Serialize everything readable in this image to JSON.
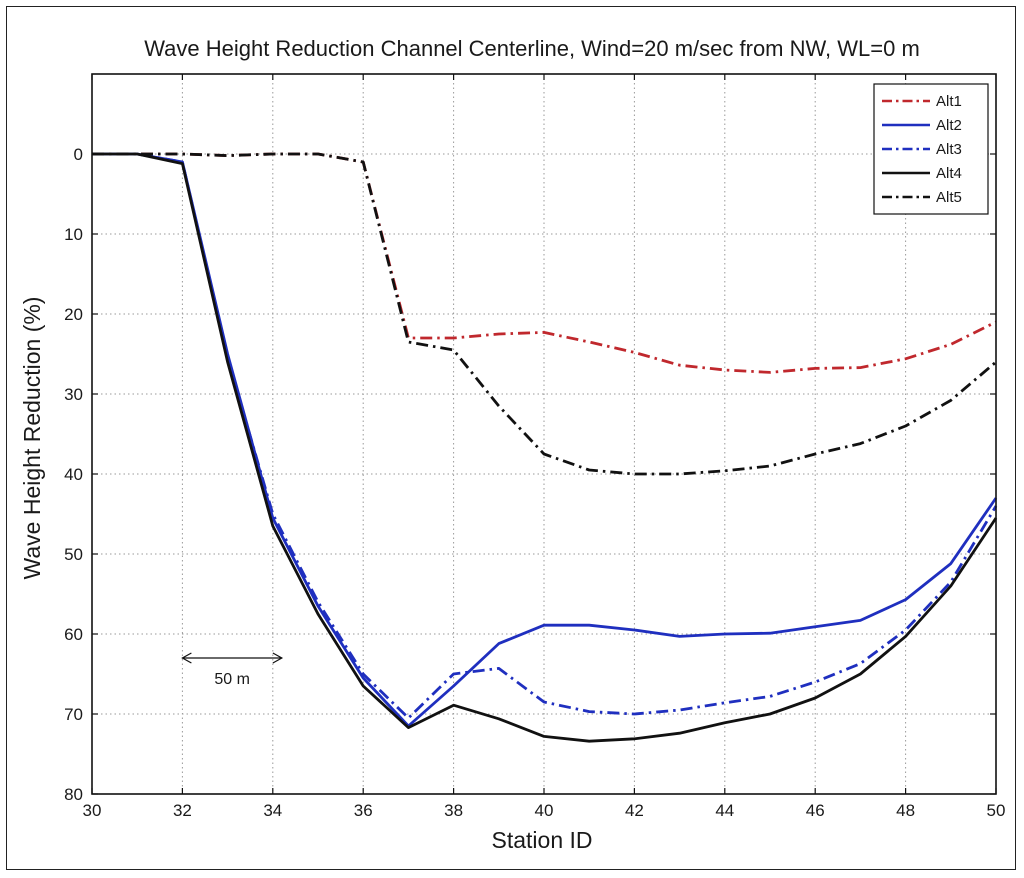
{
  "chart_data": {
    "type": "line",
    "title": "Wave Height Reduction Channel Centerline, Wind=20 m/sec from NW, WL=0 m",
    "xlabel": "Station ID",
    "ylabel": "Wave Height Reduction (%)",
    "xlim": [
      30,
      50
    ],
    "ylim": [
      -10,
      80
    ],
    "y_inverted": true,
    "grid": true,
    "xticks": [
      30,
      32,
      34,
      36,
      38,
      40,
      42,
      44,
      46,
      48,
      50
    ],
    "yticks": [
      0,
      10,
      20,
      30,
      40,
      50,
      60,
      70,
      80
    ],
    "legend_position": "top-right",
    "annotation": {
      "text": "50 m",
      "x_start": 32,
      "x_end": 34.2,
      "y": 63
    },
    "series": [
      {
        "name": "Alt1",
        "color": "#c0282d",
        "style": "dashdot",
        "x": [
          30,
          31,
          32,
          33,
          34,
          35,
          36,
          37,
          38,
          39,
          40,
          41,
          42,
          43,
          44,
          45,
          46,
          47,
          48,
          49,
          50
        ],
        "y": [
          0,
          0,
          0,
          0.2,
          0,
          0,
          1,
          23,
          23,
          22.5,
          22.3,
          23.5,
          24.8,
          26.4,
          27,
          27.3,
          26.8,
          26.7,
          25.6,
          23.8,
          21
        ]
      },
      {
        "name": "Alt2",
        "color": "#1f2fbf",
        "style": "solid",
        "x": [
          30,
          31,
          32,
          33,
          34,
          35,
          36,
          37,
          38,
          39,
          40,
          41,
          42,
          43,
          44,
          45,
          46,
          47,
          48,
          49,
          50
        ],
        "y": [
          0,
          0,
          1,
          25,
          45.5,
          56.5,
          65.5,
          71.5,
          66.5,
          61.2,
          58.9,
          58.9,
          59.5,
          60.3,
          60,
          59.9,
          59.1,
          58.3,
          55.7,
          51.2,
          43
        ]
      },
      {
        "name": "Alt3",
        "color": "#1f2fbf",
        "style": "dashdot",
        "x": [
          30,
          31,
          32,
          33,
          34,
          35,
          36,
          37,
          38,
          39,
          40,
          41,
          42,
          43,
          44,
          45,
          46,
          47,
          48,
          49,
          50
        ],
        "y": [
          0,
          0,
          1,
          25.5,
          45,
          56,
          65,
          70.5,
          65,
          64.3,
          68.5,
          69.7,
          70,
          69.5,
          68.6,
          67.8,
          66,
          63.7,
          59.5,
          53.5,
          44
        ]
      },
      {
        "name": "Alt4",
        "color": "#111111",
        "style": "solid",
        "x": [
          30,
          31,
          32,
          33,
          34,
          35,
          36,
          37,
          38,
          39,
          40,
          41,
          42,
          43,
          44,
          45,
          46,
          47,
          48,
          49,
          50
        ],
        "y": [
          0,
          0,
          1.2,
          26,
          46.5,
          57.5,
          66.5,
          71.7,
          68.9,
          70.6,
          72.8,
          73.4,
          73.1,
          72.4,
          71.1,
          70,
          68,
          65,
          60.3,
          54,
          45.5
        ]
      },
      {
        "name": "Alt5",
        "color": "#111111",
        "style": "dashdot",
        "x": [
          30,
          31,
          32,
          33,
          34,
          35,
          36,
          37,
          38,
          39,
          40,
          41,
          42,
          43,
          44,
          45,
          46,
          47,
          48,
          49,
          50
        ],
        "y": [
          0,
          0,
          0,
          0.2,
          0,
          0,
          1,
          23.5,
          24.5,
          31.5,
          37.5,
          39.5,
          40,
          40,
          39.6,
          39,
          37.5,
          36.2,
          34,
          30.8,
          26
        ]
      }
    ]
  }
}
